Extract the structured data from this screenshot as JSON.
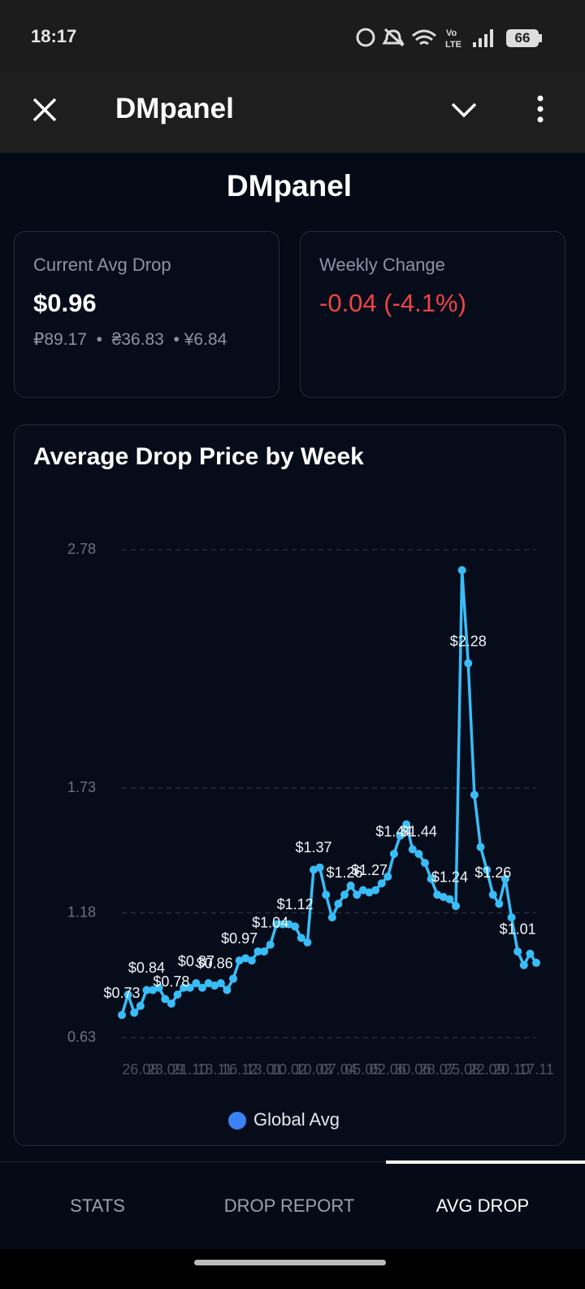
{
  "status_bar": {
    "time": "18:17",
    "battery": "66"
  },
  "app_bar": {
    "title": "DMpanel"
  },
  "header": {
    "title": "DMpanel"
  },
  "cards": [
    {
      "label": "Current Avg Drop",
      "value": "$0.96",
      "sub": [
        "₽89.17",
        "₴36.83",
        "¥6.84"
      ]
    },
    {
      "label": "Weekly Change",
      "value": "-0.04 (-4.1%)"
    }
  ],
  "chart_data": {
    "type": "line",
    "title": "Average Drop Price by Week",
    "categories": [
      null,
      null,
      null,
      "26.08",
      null,
      null,
      null,
      "23.09",
      null,
      null,
      null,
      "21.10",
      null,
      null,
      null,
      "18.11",
      null,
      null,
      null,
      "16.12",
      null,
      null,
      null,
      "13.01",
      null,
      null,
      null,
      "10.02",
      null,
      null,
      null,
      "10.03",
      null,
      null,
      null,
      "07.04",
      null,
      null,
      null,
      "05.05",
      null,
      null,
      null,
      "02.06",
      null,
      null,
      null,
      "30.06",
      null,
      null,
      null,
      "28.07",
      null,
      null,
      null,
      "25.08",
      null,
      null,
      null,
      "22.09",
      null,
      null,
      null,
      "20.10",
      null,
      null,
      null,
      "17.11"
    ],
    "series": [
      {
        "name": "Global Avg",
        "color": "#38bdf8",
        "legend_color": "#3b82f6",
        "values": [
          0.73,
          0.82,
          0.74,
          0.77,
          0.84,
          0.84,
          0.85,
          0.8,
          0.78,
          0.82,
          0.85,
          0.85,
          0.87,
          0.85,
          0.87,
          0.86,
          0.87,
          0.84,
          0.89,
          0.97,
          0.98,
          0.97,
          1.01,
          1.01,
          1.04,
          1.13,
          1.13,
          1.13,
          1.12,
          1.07,
          1.05,
          1.37,
          1.38,
          1.26,
          1.16,
          1.22,
          1.26,
          1.3,
          1.26,
          1.28,
          1.27,
          1.28,
          1.31,
          1.34,
          1.44,
          1.52,
          1.57,
          1.46,
          1.44,
          1.4,
          1.33,
          1.26,
          1.25,
          1.24,
          1.21,
          2.69,
          2.28,
          1.7,
          1.47,
          1.37,
          1.26,
          1.22,
          1.33,
          1.16,
          1.01,
          0.95,
          1.0,
          0.96
        ],
        "value_labels": [
          "$0.73",
          null,
          null,
          null,
          "$0.84",
          null,
          null,
          null,
          "$0.78",
          null,
          null,
          null,
          "$0.87",
          null,
          null,
          "$0.86",
          null,
          null,
          null,
          "$0.97",
          null,
          null,
          null,
          null,
          "$1.04",
          null,
          null,
          null,
          "$1.12",
          null,
          null,
          "$1.37",
          null,
          null,
          null,
          null,
          "$1.26",
          null,
          null,
          null,
          "$1.27",
          null,
          null,
          null,
          "$1.44",
          null,
          null,
          null,
          "$1.44",
          null,
          null,
          null,
          null,
          "$1.24",
          null,
          null,
          "$2.28",
          null,
          null,
          null,
          "$1.26",
          null,
          null,
          null,
          "$1.01",
          null,
          null,
          null
        ]
      }
    ],
    "ylim": [
      0.63,
      2.78
    ],
    "yticks": [
      0.63,
      1.18,
      1.73,
      2.78
    ],
    "grid": true
  },
  "tabs": [
    "STATS",
    "DROP REPORT",
    "AVG DROP"
  ]
}
